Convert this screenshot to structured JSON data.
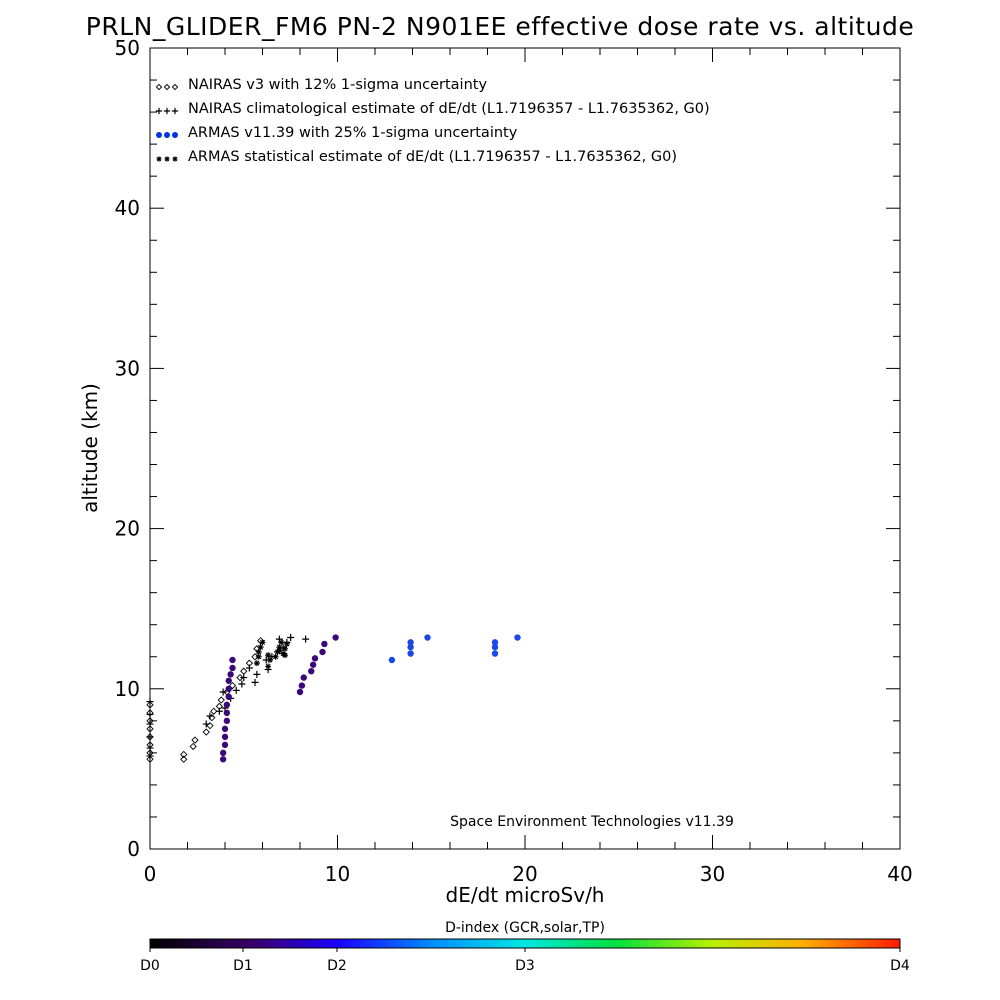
{
  "chart_data": {
    "type": "scatter",
    "title": "PRLN_GLIDER_FM6 PN-2 N901EE effective dose rate vs. altitude",
    "xlabel": "dE/dt microSv/h",
    "ylabel": "altitude (km)",
    "xlim": [
      0,
      40
    ],
    "ylim": [
      0,
      50
    ],
    "x_ticks": [
      "0",
      "10",
      "20",
      "30",
      "40"
    ],
    "y_ticks": [
      "0",
      "10",
      "20",
      "30",
      "40",
      "50"
    ],
    "legend_position": "top-left",
    "annotation": "Space Environment Technologies v11.39",
    "colorbar": {
      "title": "D-index (GCR,solar,TP)",
      "labels": [
        "D0",
        "D1",
        "D2",
        "D3",
        "D4"
      ]
    },
    "series": [
      {
        "name": "NAIRAS v3 with 12% 1-sigma uncertainty",
        "marker": "diamond",
        "color": "#000000",
        "points": [
          [
            0.0,
            5.6
          ],
          [
            0.0,
            6.0
          ],
          [
            0.0,
            6.5
          ],
          [
            0.0,
            7.0
          ],
          [
            0.0,
            7.5
          ],
          [
            0.0,
            8.0
          ],
          [
            0.0,
            8.5
          ],
          [
            0.0,
            9.0
          ],
          [
            1.8,
            5.6
          ],
          [
            1.8,
            5.9
          ],
          [
            2.3,
            6.4
          ],
          [
            2.4,
            6.8
          ],
          [
            3.0,
            7.3
          ],
          [
            3.2,
            7.7
          ],
          [
            3.3,
            8.2
          ],
          [
            3.4,
            8.6
          ],
          [
            3.7,
            8.9
          ],
          [
            3.8,
            9.3
          ],
          [
            4.1,
            9.8
          ],
          [
            4.4,
            10.2
          ],
          [
            4.8,
            10.7
          ],
          [
            5.0,
            11.1
          ],
          [
            5.3,
            11.6
          ],
          [
            5.6,
            12.0
          ],
          [
            5.7,
            12.5
          ],
          [
            5.9,
            13.0
          ]
        ]
      },
      {
        "name": "NAIRAS climatological estimate of dE/dt (L1.7196357 - L1.7635362, G0)",
        "marker": "plus",
        "color": "#000000",
        "points": [
          [
            0.0,
            5.8
          ],
          [
            0.0,
            6.3
          ],
          [
            0.0,
            7.0
          ],
          [
            0.0,
            7.8
          ],
          [
            0.0,
            8.4
          ],
          [
            0.0,
            9.2
          ],
          [
            3.0,
            7.8
          ],
          [
            3.2,
            8.3
          ],
          [
            3.7,
            8.6
          ],
          [
            4.0,
            8.8
          ],
          [
            3.9,
            9.8
          ],
          [
            4.3,
            9.4
          ],
          [
            4.6,
            9.9
          ],
          [
            4.9,
            10.3
          ],
          [
            5.0,
            10.7
          ],
          [
            5.6,
            10.4
          ],
          [
            5.7,
            10.9
          ],
          [
            5.3,
            11.3
          ],
          [
            6.3,
            11.2
          ],
          [
            6.2,
            11.8
          ],
          [
            6.5,
            12.0
          ],
          [
            6.8,
            12.3
          ],
          [
            7.1,
            12.6
          ],
          [
            7.3,
            12.9
          ],
          [
            7.5,
            13.2
          ],
          [
            6.9,
            13.1
          ],
          [
            8.3,
            13.1
          ]
        ]
      },
      {
        "name": "ARMAS v11.39 with 25% 1-sigma uncertainty",
        "marker": "dot",
        "color": "#0033dd",
        "points": [
          [
            3.9,
            5.6
          ],
          [
            3.9,
            6.0
          ],
          [
            4.0,
            6.5
          ],
          [
            4.0,
            7.0
          ],
          [
            4.0,
            7.5
          ],
          [
            4.1,
            8.0
          ],
          [
            4.1,
            8.5
          ],
          [
            4.1,
            9.0
          ],
          [
            4.2,
            9.5
          ],
          [
            4.2,
            10.0
          ],
          [
            4.2,
            10.5
          ],
          [
            4.3,
            10.9
          ],
          [
            4.4,
            11.3
          ],
          [
            4.4,
            11.8
          ],
          [
            8.0,
            9.8
          ],
          [
            8.1,
            10.2
          ],
          [
            8.2,
            10.7
          ],
          [
            8.6,
            11.1
          ],
          [
            8.7,
            11.5
          ],
          [
            8.8,
            11.9
          ],
          [
            9.2,
            12.3
          ],
          [
            9.3,
            12.8
          ],
          [
            9.9,
            13.2
          ],
          [
            12.9,
            11.8
          ],
          [
            13.9,
            12.2
          ],
          [
            13.9,
            12.6
          ],
          [
            13.9,
            12.9
          ],
          [
            14.8,
            13.2
          ],
          [
            18.4,
            12.2
          ],
          [
            18.4,
            12.6
          ],
          [
            18.4,
            12.9
          ],
          [
            19.6,
            13.2
          ]
        ]
      },
      {
        "name": "ARMAS statistical estimate of dE/dt (L1.7196357 - L1.7635362, G0)",
        "marker": "asterisk",
        "color": "#000000",
        "points": [
          [
            5.7,
            11.6
          ],
          [
            5.8,
            12.0
          ],
          [
            5.8,
            12.3
          ],
          [
            5.9,
            12.6
          ],
          [
            6.0,
            12.9
          ],
          [
            6.3,
            11.4
          ],
          [
            6.4,
            11.8
          ],
          [
            6.3,
            12.1
          ],
          [
            6.7,
            12.0
          ],
          [
            6.8,
            12.3
          ],
          [
            6.9,
            12.6
          ],
          [
            7.0,
            12.9
          ],
          [
            7.1,
            12.2
          ],
          [
            7.2,
            12.5
          ],
          [
            7.3,
            12.8
          ],
          [
            7.2,
            12.1
          ],
          [
            6.9,
            12.4
          ]
        ]
      }
    ]
  }
}
